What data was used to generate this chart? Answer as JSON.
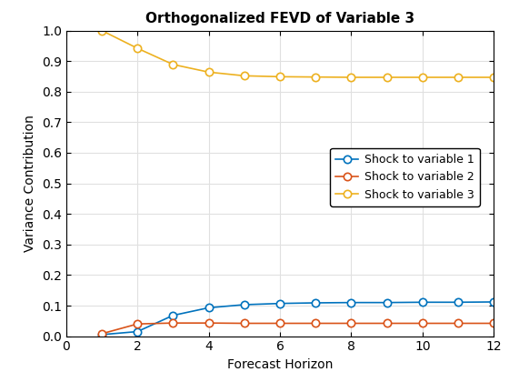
{
  "title": "Orthogonalized FEVD of Variable 3",
  "xlabel": "Forecast Horizon",
  "ylabel": "Variance Contribution",
  "x": [
    1,
    2,
    3,
    4,
    5,
    6,
    7,
    8,
    9,
    10,
    11,
    12
  ],
  "shock1_y": [
    0.005,
    0.015,
    0.068,
    0.093,
    0.103,
    0.107,
    0.109,
    0.11,
    0.11,
    0.111,
    0.111,
    0.112
  ],
  "shock2_y": [
    0.008,
    0.04,
    0.043,
    0.043,
    0.042,
    0.042,
    0.042,
    0.042,
    0.042,
    0.042,
    0.042,
    0.042
  ],
  "shock3_y": [
    1.0,
    0.942,
    0.889,
    0.864,
    0.852,
    0.849,
    0.848,
    0.847,
    0.847,
    0.847,
    0.847,
    0.847
  ],
  "shock1_color": "#0072BD",
  "shock2_color": "#D95319",
  "shock3_color": "#EDB120",
  "shock1_label": "Shock to variable 1",
  "shock2_label": "Shock to variable 2",
  "shock3_label": "Shock to variable 3",
  "xlim": [
    0,
    12
  ],
  "ylim": [
    0,
    1
  ],
  "xticks": [
    0,
    2,
    4,
    6,
    8,
    10,
    12
  ],
  "yticks": [
    0.0,
    0.1,
    0.2,
    0.3,
    0.4,
    0.5,
    0.6,
    0.7,
    0.8,
    0.9,
    1.0
  ],
  "linewidth": 1.2,
  "markersize": 6,
  "title_fontsize": 11,
  "label_fontsize": 10,
  "tick_fontsize": 10,
  "legend_fontsize": 9,
  "bg_color": "#ffffff",
  "grid_color": "#e0e0e0"
}
